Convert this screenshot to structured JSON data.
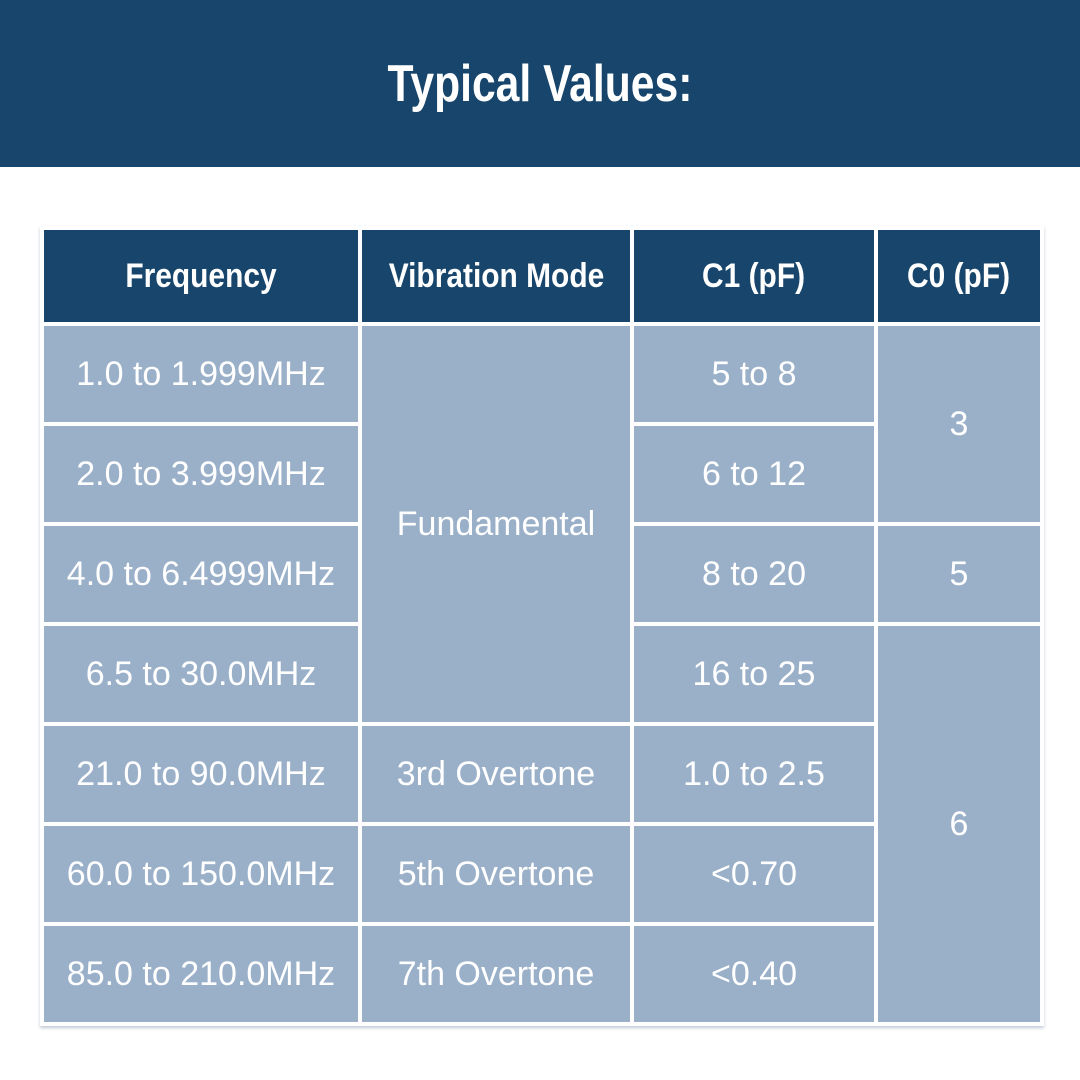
{
  "banner": {
    "title": "Typical Values:",
    "background": "#17456b",
    "text_color": "#ffffff"
  },
  "table": {
    "header_background": "#17456b",
    "body_background": "#9ab0c9",
    "gridline_color": "#ffffff",
    "text_color": "#ffffff",
    "columns": [
      "Frequency",
      "Vibration Mode",
      "C1 (pF)",
      "C0 (pF)"
    ],
    "rows": [
      {
        "frequency": "1.0 to 1.999MHz",
        "c1": "5 to 8"
      },
      {
        "frequency": "2.0 to 3.999MHz",
        "c1": "6 to 12"
      },
      {
        "frequency": "4.0 to 6.4999MHz",
        "c1": "8 to 20"
      },
      {
        "frequency": "6.5 to 30.0MHz",
        "c1": "16 to 25"
      },
      {
        "frequency": "21.0 to 90.0MHz",
        "vibration_mode": "3rd Overtone",
        "c1": "1.0 to 2.5"
      },
      {
        "frequency": "60.0 to 150.0MHz",
        "vibration_mode": "5th Overtone",
        "c1": "<0.70"
      },
      {
        "frequency": "85.0 to 210.0MHz",
        "vibration_mode": "7th Overtone",
        "c1": "<0.40"
      }
    ],
    "merged_cells": {
      "fundamental": {
        "label": "Fundamental",
        "rowspan": 4
      },
      "c0_group1": {
        "value": "3",
        "rowspan": 2
      },
      "c0_group2": {
        "value": "5",
        "rowspan": 1
      },
      "c0_group3": {
        "value": "6",
        "rowspan": 4
      }
    }
  },
  "chart_data": {
    "type": "table",
    "title": "Typical Values:",
    "columns": [
      "Frequency",
      "Vibration Mode",
      "C1 (pF)",
      "C0 (pF)"
    ],
    "rows": [
      [
        "1.0 to 1.999MHz",
        "Fundamental",
        "5 to 8",
        "3"
      ],
      [
        "2.0 to 3.999MHz",
        "Fundamental",
        "6 to 12",
        "3"
      ],
      [
        "4.0 to 6.4999MHz",
        "Fundamental",
        "8 to 20",
        "5"
      ],
      [
        "6.5 to 30.0MHz",
        "Fundamental",
        "16 to 25",
        "6"
      ],
      [
        "21.0 to 90.0MHz",
        "3rd Overtone",
        "1.0 to 2.5",
        "6"
      ],
      [
        "60.0 to 150.0MHz",
        "5th Overtone",
        "<0.70",
        "6"
      ],
      [
        "85.0 to 210.0MHz",
        "7th Overtone",
        "<0.40",
        "6"
      ]
    ],
    "layout_hints": {
      "merged": [
        {
          "column": "Vibration Mode",
          "value": "Fundamental",
          "rows": [
            1,
            4
          ]
        },
        {
          "column": "C0 (pF)",
          "value": "3",
          "rows": [
            1,
            2
          ]
        },
        {
          "column": "C0 (pF)",
          "value": "5",
          "rows": [
            3,
            3
          ]
        },
        {
          "column": "C0 (pF)",
          "value": "6",
          "rows": [
            4,
            7
          ]
        }
      ]
    }
  }
}
